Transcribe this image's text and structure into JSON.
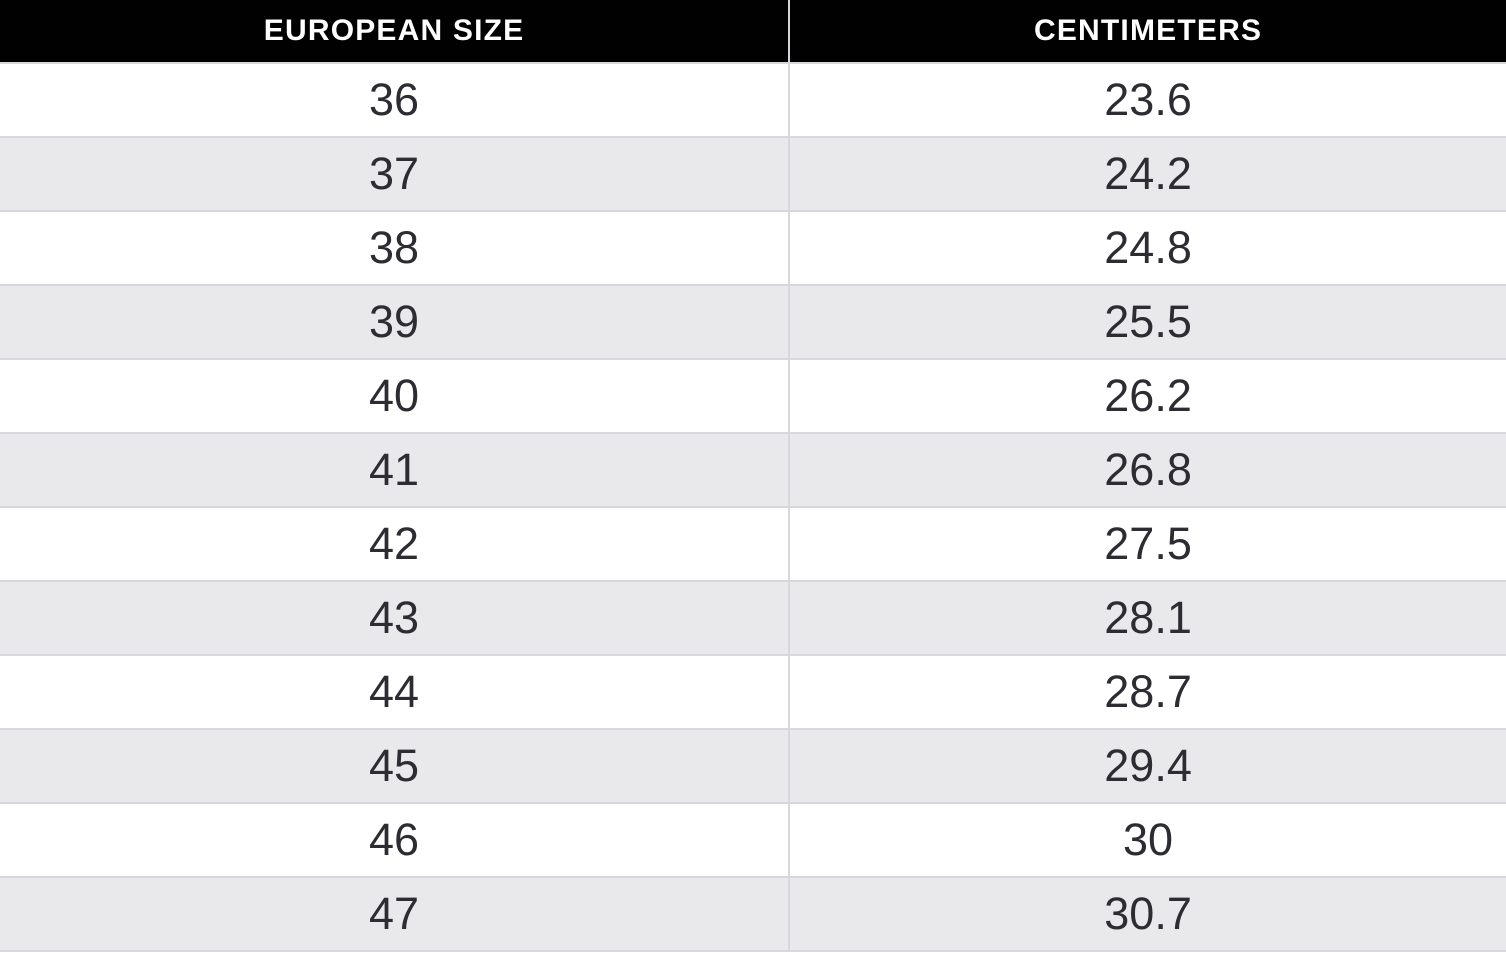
{
  "chart_data": {
    "type": "table",
    "columns": [
      "EUROPEAN SIZE",
      "CENTIMETERS"
    ],
    "rows": [
      [
        36,
        23.6
      ],
      [
        37,
        24.2
      ],
      [
        38,
        24.8
      ],
      [
        39,
        25.5
      ],
      [
        40,
        26.2
      ],
      [
        41,
        26.8
      ],
      [
        42,
        27.5
      ],
      [
        43,
        28.1
      ],
      [
        44,
        28.7
      ],
      [
        45,
        29.4
      ],
      [
        46,
        30
      ],
      [
        47,
        30.7
      ]
    ],
    "title": "",
    "layout_hints": {
      "striped": true,
      "first_row_white": true,
      "header_style": "black-bar"
    }
  },
  "colors": {
    "header_bg": "#010101",
    "header_text": "#ffffff",
    "row_bg": "#ffffff",
    "row_alt_bg": "#e9e8ea",
    "border": "#d8d7db",
    "text": "#2d2c33"
  }
}
